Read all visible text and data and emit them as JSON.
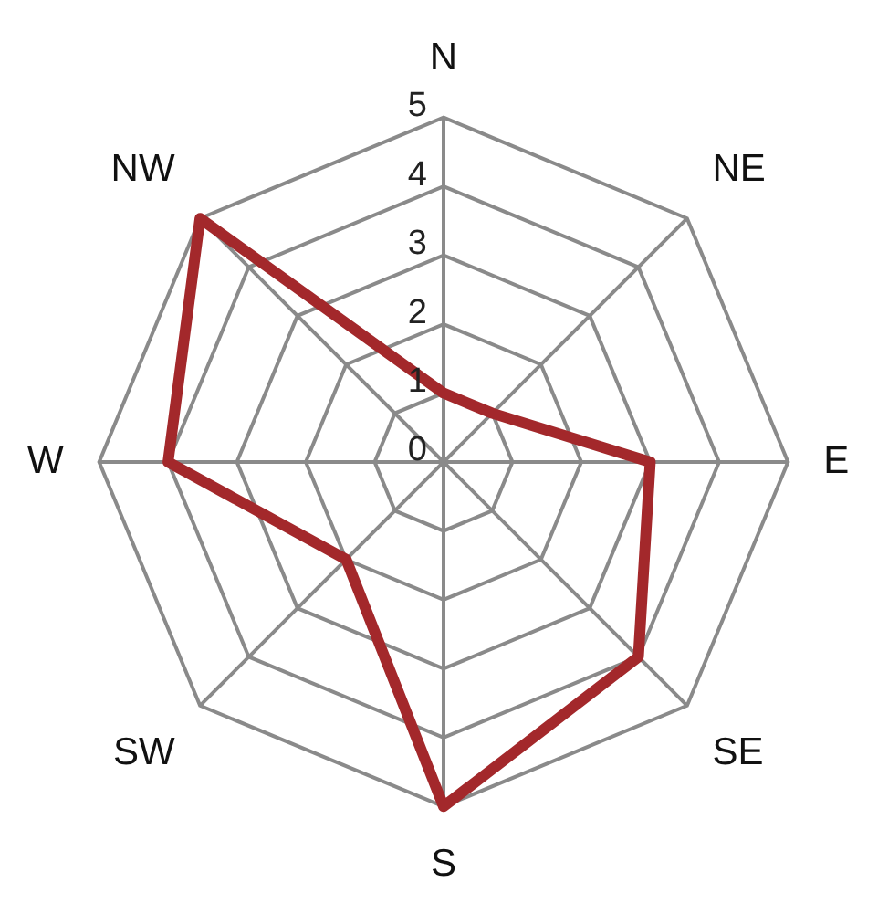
{
  "chart_data": {
    "type": "radar",
    "categories": [
      "N",
      "NE",
      "E",
      "SE",
      "S",
      "SW",
      "W",
      "NW"
    ],
    "series": [
      {
        "color": "#a3282b",
        "values": [
          1,
          1,
          3,
          4,
          5,
          2,
          4,
          5
        ]
      }
    ],
    "ylim": [
      0,
      5
    ],
    "yticks": [
      0,
      1,
      2,
      3,
      4,
      5
    ],
    "grid": true,
    "legend": false,
    "marker": "none",
    "line_style": "solid"
  }
}
